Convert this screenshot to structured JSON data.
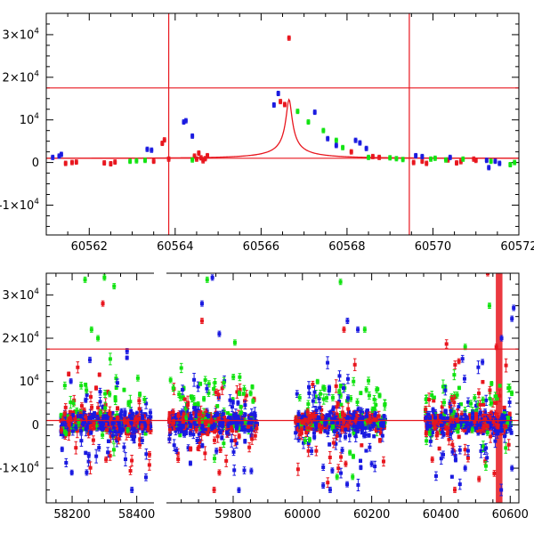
{
  "colors": {
    "g": "#11e311",
    "b": "#1a1ae0",
    "r": "#e8161e",
    "lines": "#e8161e"
  },
  "chart_data": [
    {
      "type": "scatter",
      "title": "",
      "xlabel": "",
      "ylabel": "",
      "xlim": [
        60561,
        60572
      ],
      "ylim": [
        -17000,
        35000
      ],
      "xticks": [
        60562,
        60564,
        60566,
        60568,
        60570,
        60572
      ],
      "xtick_labels": [
        "60562",
        "60564",
        "60566",
        "60568",
        "60570",
        "60572"
      ],
      "yticks": [
        -10000,
        0,
        10000,
        20000,
        30000
      ],
      "ytick_labels": [
        {
          "t": "-1×10",
          "e": "4"
        },
        {
          "t": "0",
          "e": ""
        },
        {
          "t": "10",
          "e": "4"
        },
        {
          "t": "2×10",
          "e": "4"
        },
        {
          "t": "3×10",
          "e": "4"
        }
      ],
      "hlines": [
        17500,
        1000
      ],
      "vlines": [
        60563.85,
        60569.45
      ],
      "model_curve": {
        "t0": 60566.65,
        "u0": 0.034,
        "tE": 2.0,
        "f0": 1000,
        "fs": 485
      },
      "points": {
        "g": [
          [
            60562.95,
            300
          ],
          [
            60563.1,
            400
          ],
          [
            60563.3,
            500
          ],
          [
            60564.4,
            600
          ],
          [
            60566.85,
            12000
          ],
          [
            60567.1,
            9500
          ],
          [
            60567.45,
            7500
          ],
          [
            60567.75,
            5200
          ],
          [
            60567.9,
            3500
          ],
          [
            60568.5,
            1200
          ],
          [
            60569.0,
            1100
          ],
          [
            60569.15,
            900
          ],
          [
            60569.3,
            700
          ],
          [
            60569.95,
            800
          ],
          [
            60570.05,
            1000
          ],
          [
            60570.3,
            600
          ],
          [
            60570.7,
            800
          ],
          [
            60571.35,
            300
          ],
          [
            60571.8,
            -500
          ],
          [
            60571.9,
            0
          ]
        ],
        "b": [
          [
            60561.15,
            1200
          ],
          [
            60561.3,
            1500
          ],
          [
            60561.35,
            1900
          ],
          [
            60563.35,
            3100
          ],
          [
            60563.45,
            2900
          ],
          [
            60564.2,
            9500
          ],
          [
            60564.25,
            9800
          ],
          [
            60564.4,
            6200
          ],
          [
            60566.3,
            13500
          ],
          [
            60566.4,
            16200
          ],
          [
            60567.25,
            11800
          ],
          [
            60567.55,
            5600
          ],
          [
            60567.75,
            4000
          ],
          [
            60568.2,
            5200
          ],
          [
            60568.3,
            4600
          ],
          [
            60568.45,
            3300
          ],
          [
            60569.6,
            1600
          ],
          [
            60569.75,
            1400
          ],
          [
            60570.4,
            1200
          ],
          [
            60571.25,
            500
          ],
          [
            60571.3,
            -1200
          ],
          [
            60571.45,
            300
          ],
          [
            60571.55,
            -200
          ]
        ],
        "r": [
          [
            60561.45,
            -200
          ],
          [
            60561.6,
            0
          ],
          [
            60561.7,
            100
          ],
          [
            60562.35,
            -100
          ],
          [
            60562.5,
            -300
          ],
          [
            60562.6,
            100
          ],
          [
            60563.5,
            300
          ],
          [
            60563.7,
            4500
          ],
          [
            60563.75,
            5300
          ],
          [
            60563.85,
            800
          ],
          [
            60564.45,
            1500
          ],
          [
            60564.5,
            800
          ],
          [
            60564.55,
            2200
          ],
          [
            60564.6,
            1100
          ],
          [
            60564.65,
            400
          ],
          [
            60564.7,
            900
          ],
          [
            60564.75,
            1600
          ],
          [
            60566.45,
            14300
          ],
          [
            60566.55,
            13600
          ],
          [
            60566.65,
            29200
          ],
          [
            60568.1,
            2500
          ],
          [
            60568.6,
            1400
          ],
          [
            60568.75,
            1200
          ],
          [
            60569.55,
            0
          ],
          [
            60569.75,
            300
          ],
          [
            60569.85,
            -200
          ],
          [
            60570.35,
            600
          ],
          [
            60570.55,
            -100
          ],
          [
            60570.65,
            200
          ],
          [
            60570.95,
            800
          ],
          [
            60571.0,
            500
          ]
        ]
      }
    },
    {
      "type": "scatter",
      "title": "",
      "xlabel": "",
      "ylabel": "",
      "xlim": [
        58120,
        60625
      ],
      "ylim": [
        -18000,
        35000
      ],
      "xticks": [
        58200,
        58400,
        59800,
        60000,
        60200,
        60400,
        60600
      ],
      "xtick_labels": [
        "58200",
        "58400",
        "59800",
        "60000",
        "60200",
        "60400",
        "60600"
      ],
      "yticks": [
        -10000,
        0,
        10000,
        20000,
        30000
      ],
      "ytick_labels": [
        {
          "t": "-1×10",
          "e": "4"
        },
        {
          "t": "0",
          "e": ""
        },
        {
          "t": "10",
          "e": "4"
        },
        {
          "t": "2×10",
          "e": "4"
        },
        {
          "t": "3×10",
          "e": "4"
        }
      ],
      "hlines": [
        17500,
        1000
      ],
      "vband": [
        60561,
        60575
      ],
      "seasons": [
        [
          58165,
          58445
        ],
        [
          59615,
          59870
        ],
        [
          59980,
          60240
        ],
        [
          60355,
          60605
        ]
      ],
      "axis_breaks": [
        58445,
        59615
      ],
      "notable_points": {
        "g": [
          [
            58240,
            33500
          ],
          [
            58300,
            34000
          ],
          [
            58330,
            32000
          ],
          [
            58260,
            22000
          ],
          [
            58280,
            20000
          ],
          [
            59725,
            33500
          ],
          [
            59805,
            19000
          ],
          [
            60110,
            33000
          ],
          [
            60180,
            22000
          ],
          [
            60100,
            -12000
          ],
          [
            60145,
            -12000
          ],
          [
            60540,
            27500
          ],
          [
            60470,
            18000
          ]
        ],
        "b": [
          [
            58255,
            15000
          ],
          [
            58370,
            17000
          ],
          [
            58245,
            -11000
          ],
          [
            58385,
            -15000
          ],
          [
            59740,
            34000
          ],
          [
            59710,
            28000
          ],
          [
            59760,
            21000
          ],
          [
            60130,
            24000
          ],
          [
            60160,
            22000
          ],
          [
            60060,
            -14000
          ],
          [
            60080,
            -15000
          ],
          [
            60520,
            14500
          ],
          [
            60575,
            20000
          ],
          [
            60605,
            24500
          ],
          [
            60610,
            27000
          ],
          [
            60470,
            -10000
          ],
          [
            60605,
            -10000
          ],
          [
            60200,
            -9000
          ]
        ],
        "r": [
          [
            58295,
            28000
          ],
          [
            58305,
            -8000
          ],
          [
            59745,
            -15000
          ],
          [
            59760,
            -11000
          ],
          [
            59710,
            24000
          ],
          [
            60120,
            22000
          ],
          [
            60125,
            -9000
          ],
          [
            60560,
            18000
          ],
          [
            60535,
            35000
          ],
          [
            60375,
            -8000
          ],
          [
            60390,
            -2000
          ],
          [
            60510,
            -12500
          ],
          [
            60440,
            -15000
          ]
        ]
      }
    }
  ]
}
